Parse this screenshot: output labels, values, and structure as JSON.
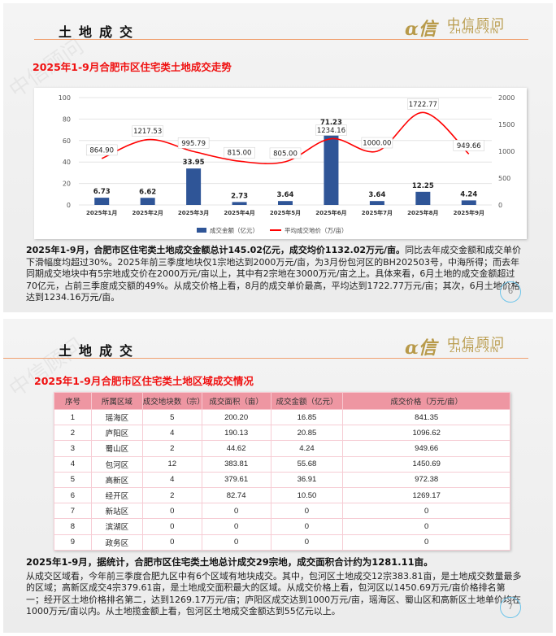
{
  "slide1": {
    "header_title": "土地成交",
    "logo": {
      "cn": "中信顾问",
      "en": "ZHONG XIN"
    },
    "watermark": "中信顾问",
    "subtitle": "2025年1-9月合肥市区住宅类土地成交走势",
    "paragraph_bold": "2025年1-9月，合肥市区住宅类土地成交金额总计145.02亿元，成交均价1132.02万元/亩。",
    "paragraph_rest": "同比去年成交金额和成交单价下滑幅度均超过30%。2025年前三季度地块仅1宗地达到2000万元/亩，为3月份包河区的BH202503号，中海所得；而去年同期成交地块中有5宗地成交价在2000万元/亩以上，其中有2宗地在3000万元/亩之上。具体来看，6月土地的成交金额超过70亿元，占前三季度成交额的49%。从成交价格上看，8月的成交单价最高，平均达到1722.77万元/亩；其次，6月土地价格达到1234.16万元/亩。",
    "page_number": "6"
  },
  "chart_data": {
    "type": "bar",
    "categories": [
      "2025年1月",
      "2025年2月",
      "2025年3月",
      "2025年4月",
      "2025年5月",
      "2025年6月",
      "2025年7月",
      "2025年8月",
      "2025年9月"
    ],
    "series": [
      {
        "name": "成交金额（亿元）",
        "type": "bar",
        "axis": "left",
        "color": "#2f5597",
        "values": [
          6.73,
          6.62,
          33.95,
          2.73,
          3.64,
          71.23,
          3.64,
          12.25,
          4.24
        ]
      },
      {
        "name": "平均成交地价（万/亩）",
        "type": "line",
        "axis": "right",
        "color": "#ff0000",
        "values": [
          864.9,
          1217.53,
          995.79,
          815.0,
          805.0,
          1234.16,
          1000.0,
          1722.77,
          949.66
        ]
      }
    ],
    "left_axis": {
      "ylim": [
        0,
        100
      ],
      "ticks": [
        0,
        20,
        40,
        60,
        80,
        100
      ]
    },
    "right_axis": {
      "ylim": [
        0,
        2000
      ],
      "ticks": [
        0,
        500,
        1000,
        1500,
        2000
      ]
    },
    "grid": true,
    "legend": "bottom"
  },
  "slide2": {
    "header_title": "土地成交",
    "logo": {
      "cn": "中信顾问",
      "en": "ZHONG XIN"
    },
    "subtitle": "2025年1-9月合肥市区住宅类土地区域成交情况",
    "table": {
      "headers": [
        "序号",
        "所属区域",
        "成交地块数（宗）",
        "成交面积（亩）",
        "成交金额（亿元）",
        "成交价格（万元/亩）"
      ],
      "rows": [
        [
          "1",
          "瑶海区",
          "5",
          "200.20",
          "16.85",
          "841.35"
        ],
        [
          "2",
          "庐阳区",
          "4",
          "190.13",
          "20.85",
          "1096.62"
        ],
        [
          "3",
          "蜀山区",
          "2",
          "44.62",
          "4.24",
          "949.66"
        ],
        [
          "4",
          "包河区",
          "12",
          "383.81",
          "55.68",
          "1450.69"
        ],
        [
          "5",
          "高新区",
          "4",
          "379.61",
          "36.91",
          "972.38"
        ],
        [
          "6",
          "经开区",
          "2",
          "82.74",
          "10.50",
          "1269.17"
        ],
        [
          "7",
          "新站区",
          "0",
          "0",
          "0",
          "0"
        ],
        [
          "8",
          "滨湖区",
          "0",
          "0",
          "0",
          "0"
        ],
        [
          "9",
          "政务区",
          "0",
          "0",
          "0",
          "0"
        ]
      ]
    },
    "paragraph_bold": "2025年1-9月，据统计，合肥市区住宅类土地总计成交29宗地，成交面积合计约为1281.11亩。",
    "paragraph_rest": "从成交区域看，今年前三季度合肥九区中有6个区域有地块成交。其中，包河区土地成交12宗383.81亩，是土地成交数量最多的区域；高新区成交4宗379.61亩，是土地成交面积最大的区域。从成交价格上看，包河区以1450.69万元/亩价格排名第一；经开区土地价格排名第二，达到1269.17万元/亩；庐阳区成交达到1000万元/亩，瑶海区、蜀山区和高新区土地单价均在1000万元/亩以内。从土地揽金额上看，包河区土地成交金额达到55亿元以上。",
    "page_number": "7"
  }
}
